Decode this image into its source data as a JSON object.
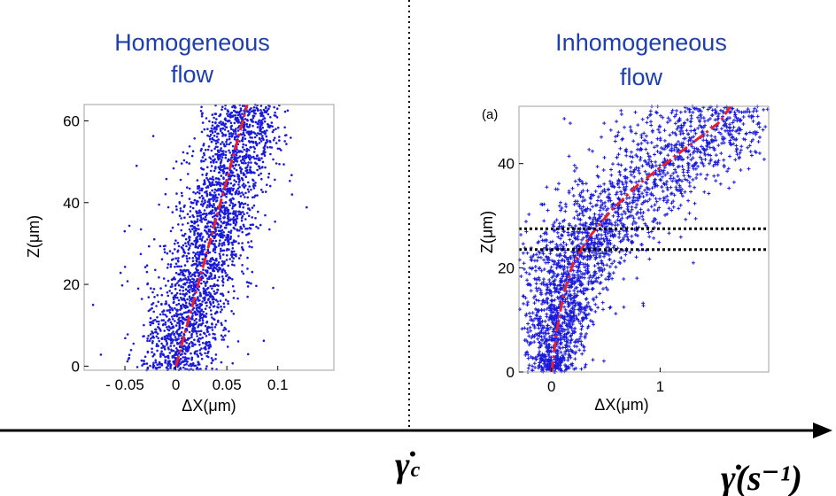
{
  "chart_data": [
    {
      "type": "scatter",
      "title": [
        "Homogeneous",
        "flow"
      ],
      "xlabel": "ΔX(μm)",
      "ylabel": "Z(μm)",
      "xlim": [
        -0.09,
        0.155
      ],
      "ylim": [
        -1,
        64
      ],
      "xticks": [
        -0.05,
        0,
        0.05,
        0.1
      ],
      "xtick_labels": [
        "- 0.05",
        "0",
        "0.05",
        "0.1"
      ],
      "yticks": [
        0,
        20,
        40,
        60
      ],
      "ytick_labels": [
        "0",
        "20",
        "40",
        "60"
      ],
      "series": [
        {
          "name": "particle displacements",
          "style": "blue dots",
          "color": "#1a1adc",
          "description": "dense band centred on the linear profile, spread about ±0.02 μm"
        },
        {
          "name": "linear fit",
          "style": "red dash-dot line",
          "color": "#e8202a",
          "x": [
            0.0,
            0.07
          ],
          "y": [
            0,
            64
          ]
        }
      ]
    },
    {
      "type": "scatter",
      "panel_label": "(a)",
      "title": [
        "Inhomogeneous",
        "flow"
      ],
      "xlabel": "ΔX(μm)",
      "ylabel": "Z(μm)",
      "xlim": [
        -0.3,
        2.0
      ],
      "ylim": [
        0,
        51
      ],
      "xticks": [
        0,
        1
      ],
      "xtick_labels": [
        "0",
        "1"
      ],
      "yticks": [
        0,
        20,
        40
      ],
      "ytick_labels": [
        "0",
        "20",
        "40"
      ],
      "hlines": [
        {
          "y": 27.5,
          "style": "black dotted"
        },
        {
          "y": 23.5,
          "style": "black dotted"
        }
      ],
      "series": [
        {
          "name": "particle displacements",
          "style": "blue plus markers",
          "color": "#1a1adc",
          "description": "band following the curved profile, widening with height"
        },
        {
          "name": "profile fit",
          "style": "red dash-dot curve",
          "color": "#e8202a",
          "x": [
            0.0,
            0.05,
            0.11,
            0.2,
            0.35,
            0.55,
            0.8,
            1.05,
            1.3,
            1.55,
            1.65
          ],
          "y": [
            0,
            8,
            15,
            21,
            26,
            31,
            36,
            40,
            44,
            48,
            51
          ]
        }
      ]
    }
  ],
  "shear_axis": {
    "critical_label": "γ̇",
    "critical_subscript": "c",
    "axis_label": "γ̇(s⁻¹)"
  }
}
